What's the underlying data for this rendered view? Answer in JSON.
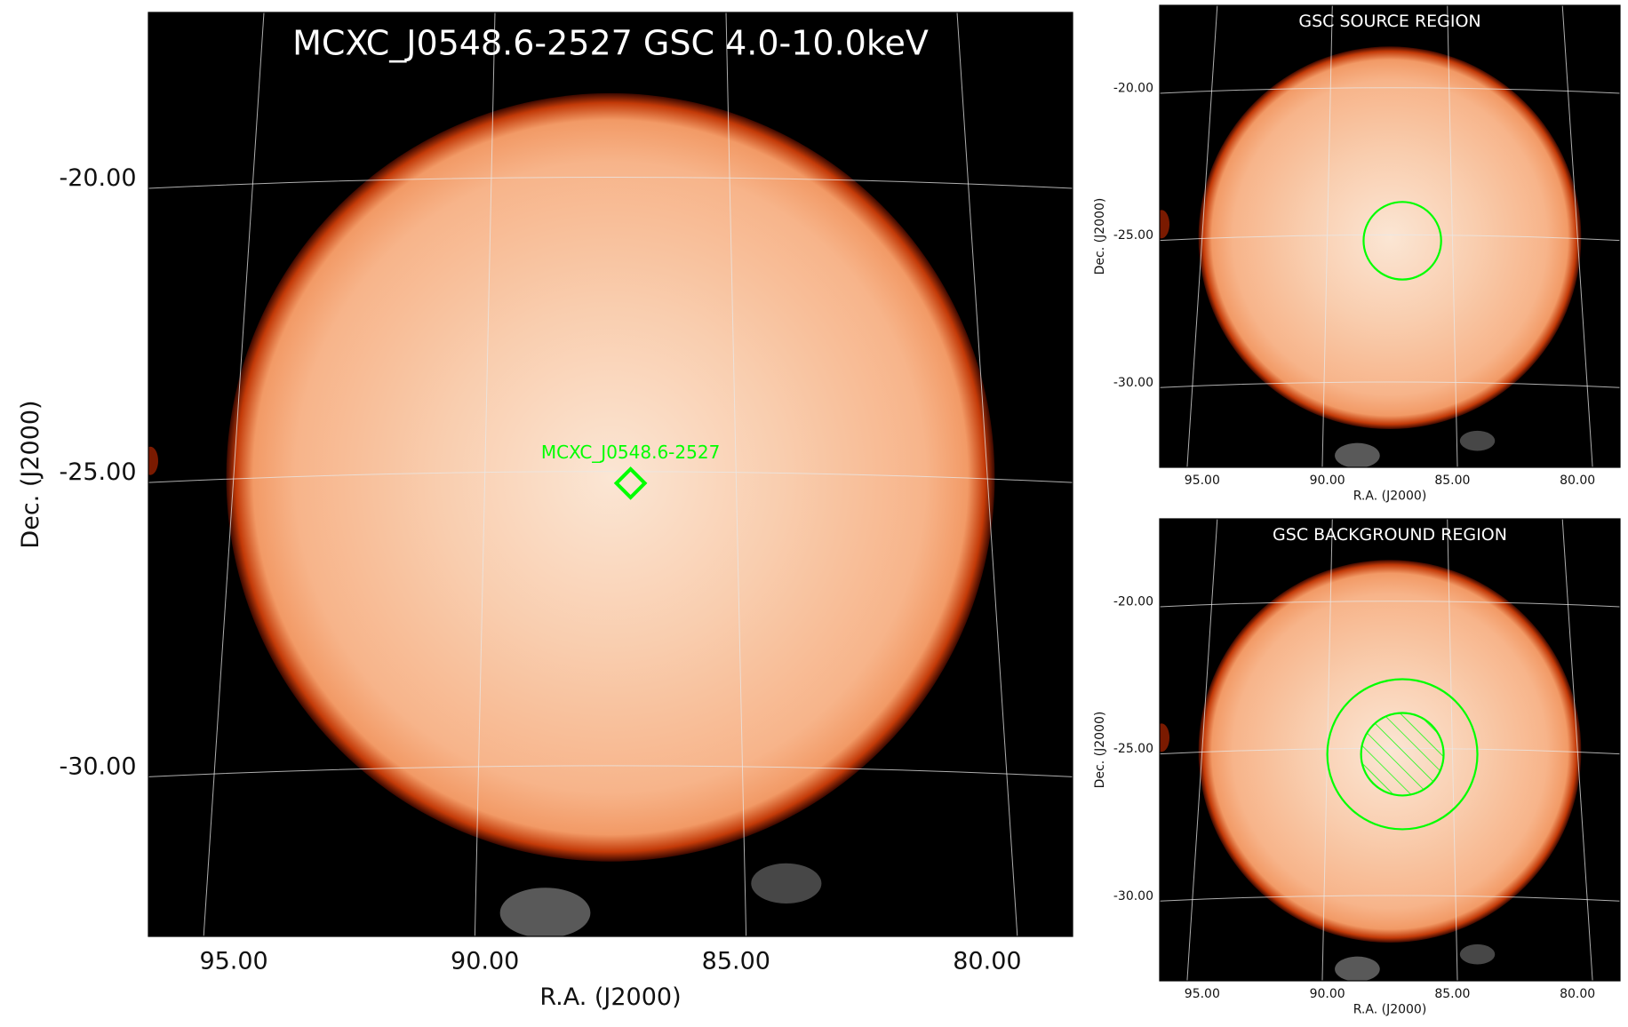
{
  "colors": {
    "disk_center": "#fbe6d4",
    "disk_mid": "#f7b48a",
    "disk_edge": "#f29a66",
    "rim": "#c33a08",
    "sky": "#000000",
    "grid": "#e8e8e8",
    "region": "#00ff00",
    "title": "#ffffff",
    "text": "#111111"
  },
  "chart_data": [
    {
      "type": "heatmap",
      "title": "MCXC_J0548.6-2527 GSC 4.0-10.0keV",
      "xlabel": "R.A. (J2000)",
      "ylabel": "Dec. (J2000)",
      "xlim": [
        96.7,
        78.3
      ],
      "ylim": [
        -32.9,
        -17.2
      ],
      "x_ticks": [
        95.0,
        90.0,
        85.0,
        80.0
      ],
      "x_tick_labels": [
        "95.00",
        "90.00",
        "85.00",
        "80.00"
      ],
      "y_ticks": [
        -20.0,
        -25.0,
        -30.0
      ],
      "y_tick_labels": [
        "-20.00",
        "-25.00",
        "-30.00"
      ],
      "grid": true,
      "disk": {
        "ra": 87.5,
        "dec": -25.1,
        "radius_deg": 7.65
      },
      "marker": {
        "shape": "diamond",
        "ra": 87.1,
        "dec": -25.2,
        "label": "MCXC_J0548.6-2527"
      }
    },
    {
      "type": "heatmap",
      "title": "GSC SOURCE REGION",
      "xlabel": "R.A. (J2000)",
      "ylabel": "Dec. (J2000)",
      "xlim": [
        96.7,
        78.3
      ],
      "ylim": [
        -32.9,
        -17.2
      ],
      "x_ticks": [
        95.0,
        90.0,
        85.0,
        80.0
      ],
      "x_tick_labels": [
        "95.00",
        "90.00",
        "85.00",
        "80.00"
      ],
      "y_ticks": [
        -20.0,
        -25.0,
        -30.0
      ],
      "y_tick_labels": [
        "-20.00",
        "-25.00",
        "-30.00"
      ],
      "grid": true,
      "disk": {
        "ra": 87.5,
        "dec": -25.1,
        "radius_deg": 7.65
      },
      "regions": [
        {
          "shape": "circle",
          "ra": 87.0,
          "dec": -25.2,
          "radius_deg": 1.55,
          "hatched": false
        }
      ]
    },
    {
      "type": "heatmap",
      "title": "GSC BACKGROUND REGION",
      "xlabel": "R.A. (J2000)",
      "ylabel": "Dec. (J2000)",
      "xlim": [
        96.7,
        78.3
      ],
      "ylim": [
        -32.9,
        -17.2
      ],
      "x_ticks": [
        95.0,
        90.0,
        85.0,
        80.0
      ],
      "x_tick_labels": [
        "95.00",
        "90.00",
        "85.00",
        "80.00"
      ],
      "y_ticks": [
        -20.0,
        -25.0,
        -30.0
      ],
      "y_tick_labels": [
        "-20.00",
        "-25.00",
        "-30.00"
      ],
      "grid": true,
      "disk": {
        "ra": 87.5,
        "dec": -25.1,
        "radius_deg": 7.65
      },
      "regions": [
        {
          "shape": "circle",
          "ra": 87.0,
          "dec": -25.2,
          "radius_deg": 3.0,
          "hatched": false
        },
        {
          "shape": "circle",
          "ra": 87.0,
          "dec": -25.2,
          "radius_deg": 1.65,
          "hatched": true
        }
      ]
    }
  ]
}
